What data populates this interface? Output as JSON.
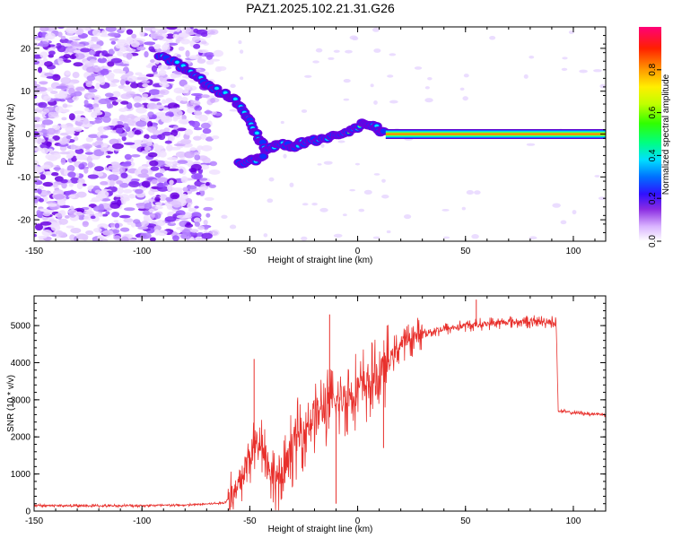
{
  "figure": {
    "title": "PAZ1.2025.102.21.31.G26"
  },
  "chart_data": [
    {
      "type": "heatmap",
      "xlabel": "Height of straight line (km)",
      "ylabel": "Frequency (Hz)",
      "xlim": [
        -150,
        115
      ],
      "ylim": [
        -25,
        25
      ],
      "xticks": [
        -150,
        -100,
        -50,
        0,
        50,
        100
      ],
      "yticks": [
        -20,
        -10,
        0,
        10,
        20
      ],
      "colorbar": {
        "label": "Normalized spectral amplitude",
        "range": [
          0,
          1
        ],
        "ticks": [
          0.0,
          0.2,
          0.4,
          0.6,
          0.8
        ],
        "tick_labels": [
          "0.0",
          "0.2",
          "0.4",
          "0.6",
          "0.8"
        ],
        "colormap": [
          "#ffffff",
          "#cc88ff",
          "#7a00e0",
          "#0000ff",
          "#00ffff",
          "#00ff00",
          "#ffff00",
          "#ff8800",
          "#ff0000",
          "#ff0080"
        ]
      },
      "features": {
        "noise_region_x": [
          -150,
          -62
        ],
        "signal_ridge": [
          {
            "x": -92,
            "y": 18
          },
          {
            "x": -82,
            "y": 16
          },
          {
            "x": -75,
            "y": 14
          },
          {
            "x": -68,
            "y": 11
          },
          {
            "x": -60,
            "y": 9
          },
          {
            "x": -55,
            "y": 7
          },
          {
            "x": -50,
            "y": 3
          },
          {
            "x": -46,
            "y": -1
          },
          {
            "x": -42,
            "y": -4
          },
          {
            "x": -37,
            "y": -2
          },
          {
            "x": -30,
            "y": -3
          },
          {
            "x": -25,
            "y": -2
          },
          {
            "x": -18,
            "y": -1.5
          },
          {
            "x": -10,
            "y": -0.5
          },
          {
            "x": -3,
            "y": 0.5
          },
          {
            "x": 3,
            "y": 3
          },
          {
            "x": 8,
            "y": 1.5
          },
          {
            "x": 13,
            "y": 0.3
          }
        ],
        "branch_ridge": [
          {
            "x": -55,
            "y": -7
          },
          {
            "x": -48,
            "y": -6
          },
          {
            "x": -43,
            "y": -5
          }
        ],
        "steady_tone": {
          "x_from": 13,
          "x_to": 115,
          "y": 0,
          "peak_amplitude": 0.95
        }
      }
    },
    {
      "type": "line",
      "xlabel": "Height of straight line (km)",
      "ylabel": "SNR (10 * v/v)",
      "xlim": [
        -150,
        115
      ],
      "ylim": [
        0,
        5800
      ],
      "xticks": [
        -150,
        -100,
        -50,
        0,
        50,
        100
      ],
      "yticks": [
        0,
        1000,
        2000,
        3000,
        4000,
        5000
      ],
      "color": "#e8302c",
      "envelope": [
        {
          "x": -150,
          "y": 150
        },
        {
          "x": -120,
          "y": 140
        },
        {
          "x": -80,
          "y": 160
        },
        {
          "x": -62,
          "y": 220
        },
        {
          "x": -56,
          "y": 500
        },
        {
          "x": -50,
          "y": 1500
        },
        {
          "x": -45,
          "y": 2000
        },
        {
          "x": -40,
          "y": 1000
        },
        {
          "x": -35,
          "y": 800
        },
        {
          "x": -30,
          "y": 1800
        },
        {
          "x": -20,
          "y": 2600
        },
        {
          "x": -10,
          "y": 2900
        },
        {
          "x": 0,
          "y": 3300
        },
        {
          "x": 10,
          "y": 3600
        },
        {
          "x": 15,
          "y": 4100
        },
        {
          "x": 20,
          "y": 4500
        },
        {
          "x": 30,
          "y": 4800
        },
        {
          "x": 40,
          "y": 4900
        },
        {
          "x": 50,
          "y": 5000
        },
        {
          "x": 70,
          "y": 5100
        },
        {
          "x": 92,
          "y": 5100
        },
        {
          "x": 93,
          "y": 2700
        },
        {
          "x": 100,
          "y": 2650
        },
        {
          "x": 115,
          "y": 2600
        }
      ],
      "spikes": [
        {
          "x": -13,
          "y": 5300
        },
        {
          "x": -10,
          "y": 200
        },
        {
          "x": 12,
          "y": 1700
        },
        {
          "x": -48,
          "y": 4100
        },
        {
          "x": 55,
          "y": 5700
        }
      ]
    }
  ]
}
